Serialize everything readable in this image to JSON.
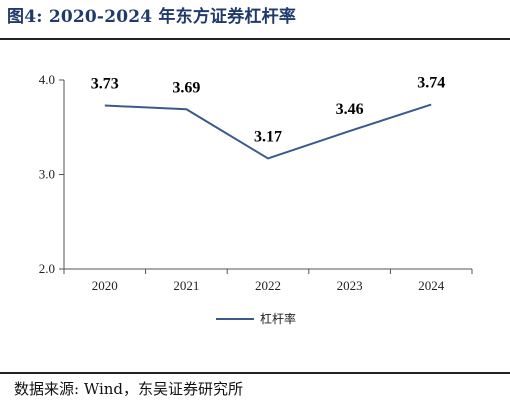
{
  "figure": {
    "title": "图4:  2020-2024 年东方证券杠杆率",
    "source": "数据来源:  Wind，东吴证券研究所"
  },
  "chart_data": {
    "type": "line",
    "x": [
      "2020",
      "2021",
      "2022",
      "2023",
      "2024"
    ],
    "series": [
      {
        "name": "杠杆率",
        "values": [
          3.73,
          3.69,
          3.17,
          3.46,
          3.74
        ],
        "labels": [
          "3.73",
          "3.69",
          "3.17",
          "3.46",
          "3.74"
        ],
        "color": "#3a5a8a"
      }
    ],
    "ylim": [
      2.0,
      4.0
    ],
    "yticks": [
      "2.0",
      "3.0",
      "4.0"
    ],
    "grid": false,
    "legend_position": "bottom"
  }
}
